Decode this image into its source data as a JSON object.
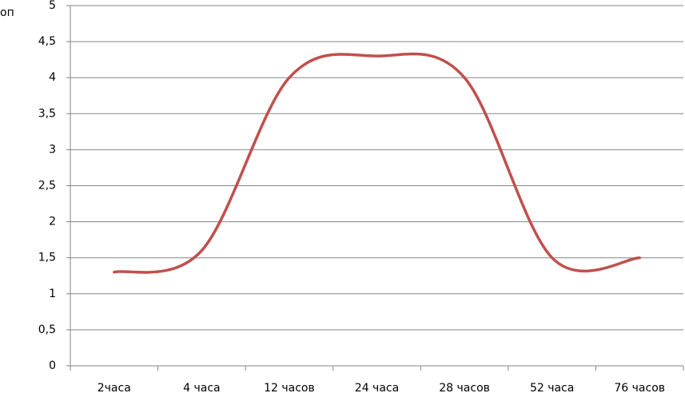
{
  "chart_data": {
    "type": "line",
    "y_label": "оп",
    "categories": [
      "2часа",
      "4 часа",
      "12 часов",
      "24 часа",
      "28 часов",
      "52 часа",
      "76 часов"
    ],
    "series": [
      {
        "name": "оп",
        "color": "#c0504d",
        "values": [
          1.3,
          1.6,
          4.0,
          4.3,
          4.0,
          1.5,
          1.5
        ]
      }
    ],
    "ylim": [
      0,
      5
    ],
    "yticks": [
      0,
      {
        "value": 0.5,
        "label": "0,5"
      },
      1,
      {
        "value": 1.5,
        "label": "1,5"
      },
      2,
      {
        "value": 2.5,
        "label": "2,5"
      },
      3,
      {
        "value": 3.5,
        "label": "3,5"
      },
      4,
      {
        "value": 4.5,
        "label": "4,5"
      },
      5
    ],
    "grid": true,
    "smooth": true
  }
}
